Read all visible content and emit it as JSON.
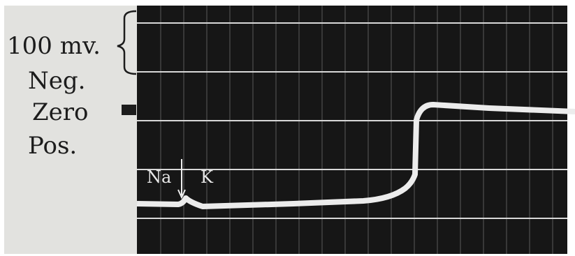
{
  "labels": {
    "scale": "100 mv.",
    "neg": "Neg.",
    "zero": "Zero",
    "pos": "Pos."
  },
  "annotations": {
    "na": "Na",
    "k": "K"
  }
}
